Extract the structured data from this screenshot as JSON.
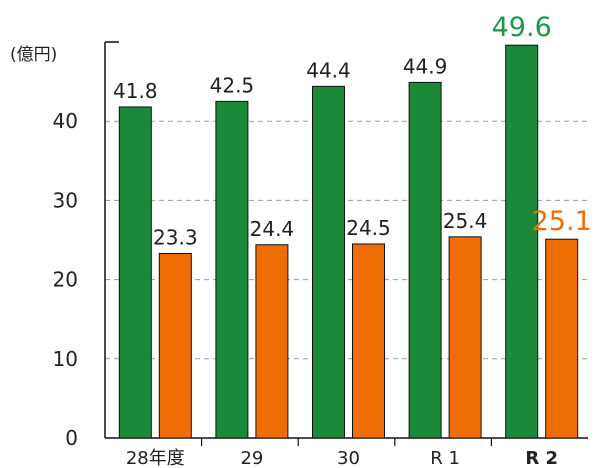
{
  "chart_data": {
    "type": "bar",
    "unit_label": "(億円)",
    "categories": [
      "28年度",
      "29",
      "30",
      "R 1",
      "R 2"
    ],
    "highlight_category_index": 4,
    "series": [
      {
        "values": [
          41.8,
          42.5,
          44.4,
          44.9,
          49.6
        ],
        "color": "#1a8a3a"
      },
      {
        "values": [
          23.3,
          24.4,
          24.5,
          25.4,
          25.1
        ],
        "color": "#ee6d05"
      }
    ],
    "value_labels": [
      [
        "41.8",
        "42.5",
        "44.4",
        "44.9",
        "49.6"
      ],
      [
        "23.3",
        "24.4",
        "24.5",
        "25.4",
        "25.1"
      ]
    ],
    "yticks": [
      "0",
      "10",
      "20",
      "30",
      "40"
    ],
    "ylim": [
      0,
      50
    ],
    "grid": true,
    "grid_style": "dashed",
    "highlight_label_colors": [
      "#1a9a44",
      "#ee6d05"
    ],
    "label_color": "#222222",
    "edge_color": "#111111"
  }
}
